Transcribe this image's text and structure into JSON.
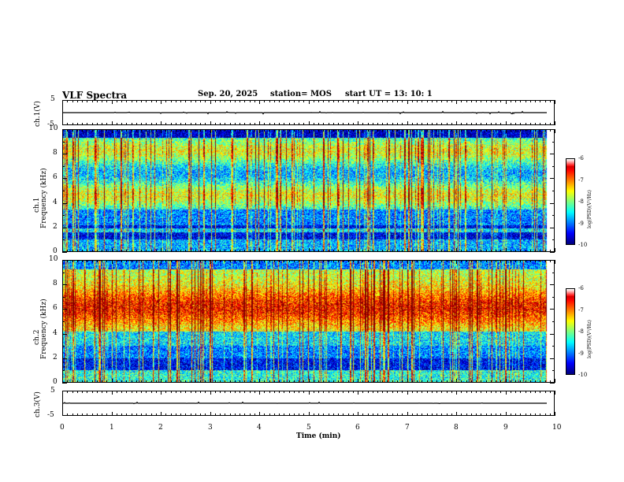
{
  "header": {
    "title": "VLF Spectra",
    "date": "Sep. 20, 2025",
    "station": "station= MOS",
    "start": "start  UT  =   13: 10: 1"
  },
  "chart_data": [
    {
      "type": "line",
      "name": "ch1-voltage",
      "ylabel": "ch.1(V)",
      "ylim": [
        -5,
        5
      ],
      "yticks": [
        "5",
        "-5"
      ],
      "level": 0
    },
    {
      "type": "heatmap",
      "name": "ch1-spectrogram",
      "ylabel": "ch.1\nFrequency (kHz)",
      "ylabel_line1": "ch.1",
      "ylabel_line2": "Frequency (kHz)",
      "ylim": [
        0,
        10
      ],
      "yticks": [
        "0",
        "2",
        "4",
        "6",
        "8",
        "10"
      ],
      "colorbar": {
        "label": "log(PSD)(V²/Hz)",
        "range": [
          -10,
          -6
        ],
        "ticks": [
          "-6",
          "-7",
          "-8",
          "-9",
          "-10"
        ]
      }
    },
    {
      "type": "heatmap",
      "name": "ch2-spectrogram",
      "ylabel": "ch.2\nFrequency (kHz)",
      "ylabel_line1": "ch.2",
      "ylabel_line2": "Frequency (kHz)",
      "ylim": [
        0,
        10
      ],
      "yticks": [
        "0",
        "2",
        "4",
        "6",
        "8",
        "10"
      ],
      "colorbar": {
        "label": "log(PSD)(V²/Hz)",
        "range": [
          -10,
          -6
        ],
        "ticks": [
          "-6",
          "-7",
          "-8",
          "-9",
          "-10"
        ]
      }
    },
    {
      "type": "line",
      "name": "ch3-voltage",
      "ylabel": "ch.3(V)",
      "ylim": [
        -5,
        5
      ],
      "yticks": [
        "5",
        "-5"
      ],
      "level": 0
    }
  ],
  "xaxis": {
    "label": "Time (min)",
    "xlim": [
      0,
      10
    ],
    "ticks": [
      "0",
      "1",
      "2",
      "3",
      "4",
      "5",
      "6",
      "7",
      "8",
      "9",
      "10"
    ],
    "data_end": 9.85
  }
}
